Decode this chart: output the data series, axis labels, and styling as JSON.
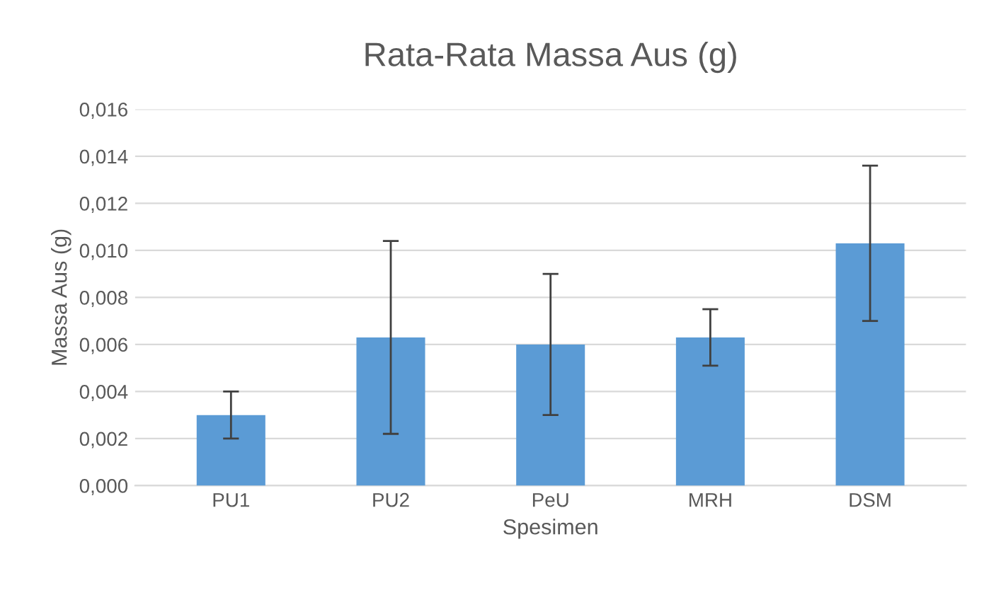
{
  "chart_data": {
    "type": "bar",
    "title": "Rata-Rata Massa Aus (g)",
    "xlabel": "Spesimen",
    "ylabel": "Massa Aus (g)",
    "categories": [
      "PU1",
      "PU2",
      "PeU",
      "MRH",
      "DSM"
    ],
    "values": [
      0.003,
      0.0063,
      0.006,
      0.0063,
      0.0103
    ],
    "errors": [
      0.001,
      0.0041,
      0.003,
      0.0012,
      0.0033
    ],
    "color": "#5b9bd5",
    "ylim": [
      0,
      0.016
    ],
    "yticks": [
      {
        "value": 0,
        "label": "0,000"
      },
      {
        "value": 0.002,
        "label": "0,002"
      },
      {
        "value": 0.004,
        "label": "0,004"
      },
      {
        "value": 0.006,
        "label": "0,006"
      },
      {
        "value": 0.008,
        "label": "0,008"
      },
      {
        "value": 0.01,
        "label": "0,010"
      },
      {
        "value": 0.012,
        "label": "0,012"
      },
      {
        "value": 0.014,
        "label": "0,014"
      },
      {
        "value": 0.016,
        "label": "0,016"
      }
    ],
    "grid": "y"
  }
}
